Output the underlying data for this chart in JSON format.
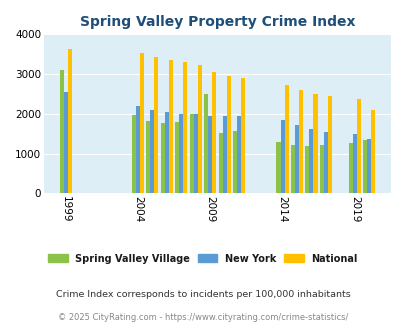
{
  "title": "Spring Valley Property Crime Index",
  "all_years": [
    1999,
    2004,
    2005,
    2006,
    2007,
    2008,
    2009,
    2010,
    2011,
    2014,
    2015,
    2016,
    2017,
    2019,
    2020
  ],
  "spring_valley": [
    3100,
    1960,
    1820,
    1760,
    1800,
    1990,
    2490,
    1530,
    1580,
    1280,
    1210,
    1180,
    1210,
    1270,
    1330
  ],
  "new_york": [
    2560,
    2190,
    2105,
    2045,
    2000,
    1990,
    1945,
    1940,
    1950,
    1840,
    1720,
    1610,
    1555,
    1480,
    1375
  ],
  "national": [
    3620,
    3530,
    3430,
    3350,
    3300,
    3220,
    3040,
    2950,
    2890,
    2730,
    2590,
    2490,
    2450,
    2380,
    2100
  ],
  "color_green": "#8bc34a",
  "color_blue": "#5b9bd5",
  "color_orange": "#ffc000",
  "bg_color": "#deeef6",
  "bg_outer": "#ffffff",
  "yticks": [
    0,
    1000,
    2000,
    3000,
    4000
  ],
  "xtick_years": [
    1999,
    2004,
    2009,
    2014,
    2019
  ],
  "legend_labels": [
    "Spring Valley Village",
    "New York",
    "National"
  ],
  "footer1": "Crime Index corresponds to incidents per 100,000 inhabitants",
  "footer2": "© 2025 CityRating.com - https://www.cityrating.com/crime-statistics/",
  "bar_width": 0.28
}
